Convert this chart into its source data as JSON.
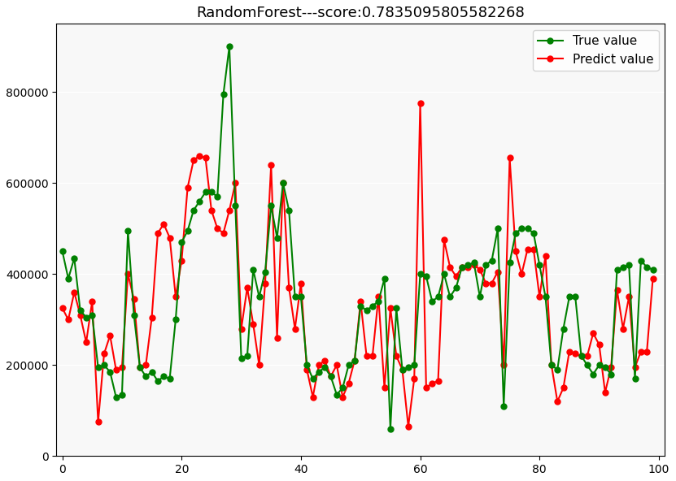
{
  "title": "RandomForest---score:0.7835095805582268",
  "true_values": [
    450000,
    390000,
    435000,
    320000,
    305000,
    310000,
    195000,
    200000,
    185000,
    130000,
    135000,
    495000,
    310000,
    195000,
    175000,
    185000,
    165000,
    175000,
    170000,
    300000,
    470000,
    495000,
    540000,
    560000,
    580000,
    580000,
    570000,
    795000,
    900000,
    550000,
    215000,
    220000,
    410000,
    350000,
    405000,
    550000,
    480000,
    600000,
    540000,
    350000,
    350000,
    200000,
    170000,
    185000,
    195000,
    175000,
    135000,
    150000,
    200000,
    210000,
    330000,
    320000,
    330000,
    340000,
    390000,
    60000,
    325000,
    190000,
    195000,
    200000,
    400000,
    395000,
    340000,
    350000,
    400000,
    350000,
    370000,
    415000,
    420000,
    425000,
    350000,
    420000,
    430000,
    500000,
    110000,
    425000,
    490000,
    500000,
    500000,
    490000,
    420000,
    350000,
    200000,
    190000,
    280000,
    350000,
    350000,
    220000,
    200000,
    180000,
    200000,
    195000,
    180000,
    410000,
    415000,
    420000,
    170000,
    430000,
    415000,
    410000
  ],
  "pred_values": [
    325000,
    300000,
    360000,
    310000,
    250000,
    340000,
    75000,
    225000,
    265000,
    190000,
    195000,
    400000,
    345000,
    195000,
    200000,
    305000,
    490000,
    510000,
    480000,
    350000,
    430000,
    590000,
    650000,
    660000,
    655000,
    540000,
    500000,
    490000,
    540000,
    600000,
    280000,
    370000,
    290000,
    200000,
    380000,
    640000,
    260000,
    600000,
    370000,
    280000,
    380000,
    190000,
    130000,
    200000,
    210000,
    175000,
    200000,
    130000,
    160000,
    210000,
    340000,
    220000,
    220000,
    350000,
    150000,
    325000,
    220000,
    190000,
    65000,
    170000,
    775000,
    150000,
    160000,
    165000,
    475000,
    415000,
    395000,
    415000,
    415000,
    420000,
    410000,
    380000,
    380000,
    405000,
    200000,
    655000,
    450000,
    400000,
    455000,
    455000,
    350000,
    440000,
    200000,
    120000,
    150000,
    230000,
    225000,
    220000,
    220000,
    270000,
    245000,
    140000,
    195000,
    365000,
    280000,
    350000,
    195000,
    230000,
    230000,
    390000
  ],
  "green_color": "#008000",
  "red_color": "#FF0000",
  "marker": "o",
  "linewidth": 1.5,
  "markersize": 5,
  "xlim": [
    -1,
    101
  ],
  "ylim": [
    0,
    950000
  ],
  "yticks": [
    0,
    200000,
    400000,
    600000,
    800000
  ],
  "xticks": [
    0,
    20,
    40,
    60,
    80,
    100
  ],
  "legend_true": "True value",
  "legend_predict": "Predict value",
  "figsize": [
    8.31,
    5.92
  ],
  "dpi": 100,
  "title_fontsize": 13,
  "tick_fontsize": 10,
  "legend_fontsize": 11
}
